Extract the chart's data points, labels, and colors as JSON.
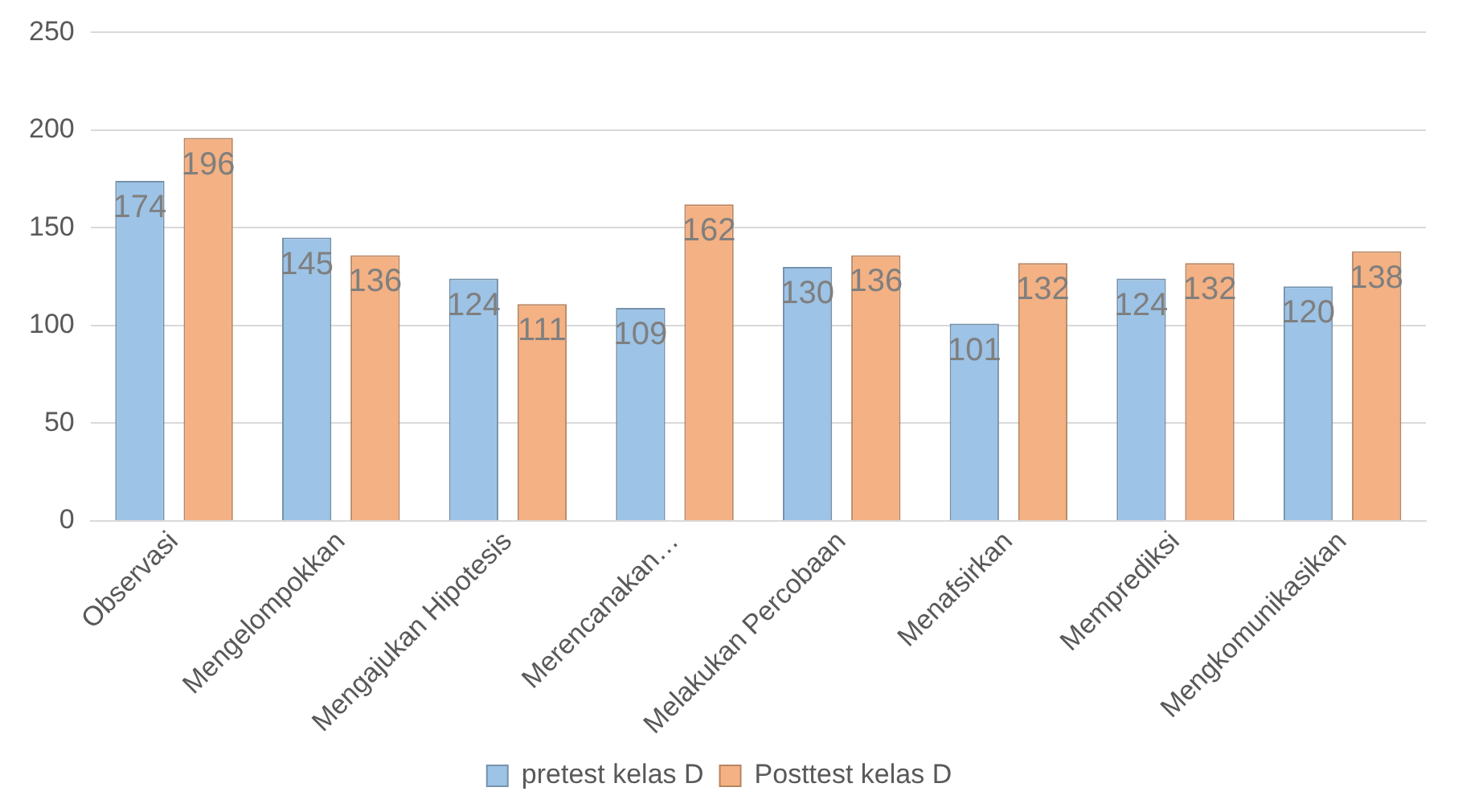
{
  "chart_data": {
    "type": "bar",
    "categories": [
      "Observasi",
      "Mengelompokkan",
      "Mengajukan Hipotesis",
      "Merencanakan…",
      "Melakukan Percobaan",
      "Menafsirkan",
      "Memprediksi",
      "Mengkomunikasikan"
    ],
    "series": [
      {
        "name": "pretest kelas D",
        "color": "#9dc3e6",
        "values": [
          174,
          145,
          124,
          109,
          130,
          101,
          124,
          120
        ]
      },
      {
        "name": "Posttest kelas D",
        "color": "#f4b183",
        "values": [
          196,
          136,
          111,
          162,
          136,
          132,
          132,
          138
        ]
      }
    ],
    "ylim": [
      0,
      250
    ],
    "yticks": [
      0,
      50,
      100,
      150,
      200,
      250
    ],
    "grid": "y",
    "legend": "bottom",
    "data_labels": true
  }
}
